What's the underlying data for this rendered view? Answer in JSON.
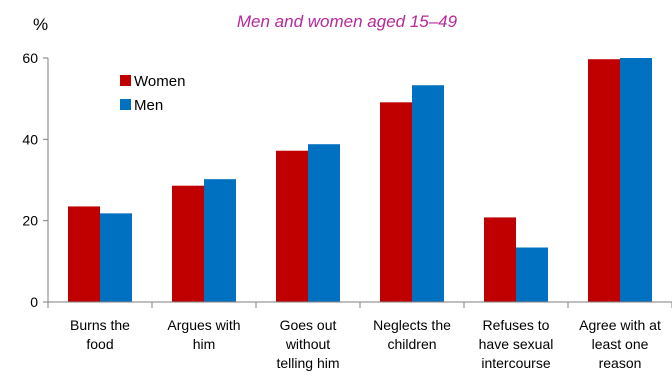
{
  "chart_data": {
    "type": "bar",
    "subtitle": "Men and women aged 15–49",
    "ylabel": "%",
    "ylim": [
      0,
      60
    ],
    "yticks": [
      0,
      20,
      40,
      60
    ],
    "grid": false,
    "legend_position": "top-left",
    "categories": [
      [
        "Burns the",
        "food"
      ],
      [
        "Argues with",
        "him"
      ],
      [
        "Goes out",
        "without",
        "telling him"
      ],
      [
        "Neglects the",
        "children"
      ],
      [
        "Refuses to",
        "have sexual",
        "intercourse"
      ],
      [
        "Agree with at",
        "least one",
        "reason"
      ]
    ],
    "series": [
      {
        "name": "Women",
        "color": "#c00000",
        "values": [
          23.5,
          28.6,
          37.2,
          49.1,
          20.8,
          59.7
        ]
      },
      {
        "name": "Men",
        "color": "#0070c0",
        "values": [
          21.8,
          30.2,
          38.8,
          53.3,
          13.4,
          60.0
        ]
      }
    ]
  }
}
